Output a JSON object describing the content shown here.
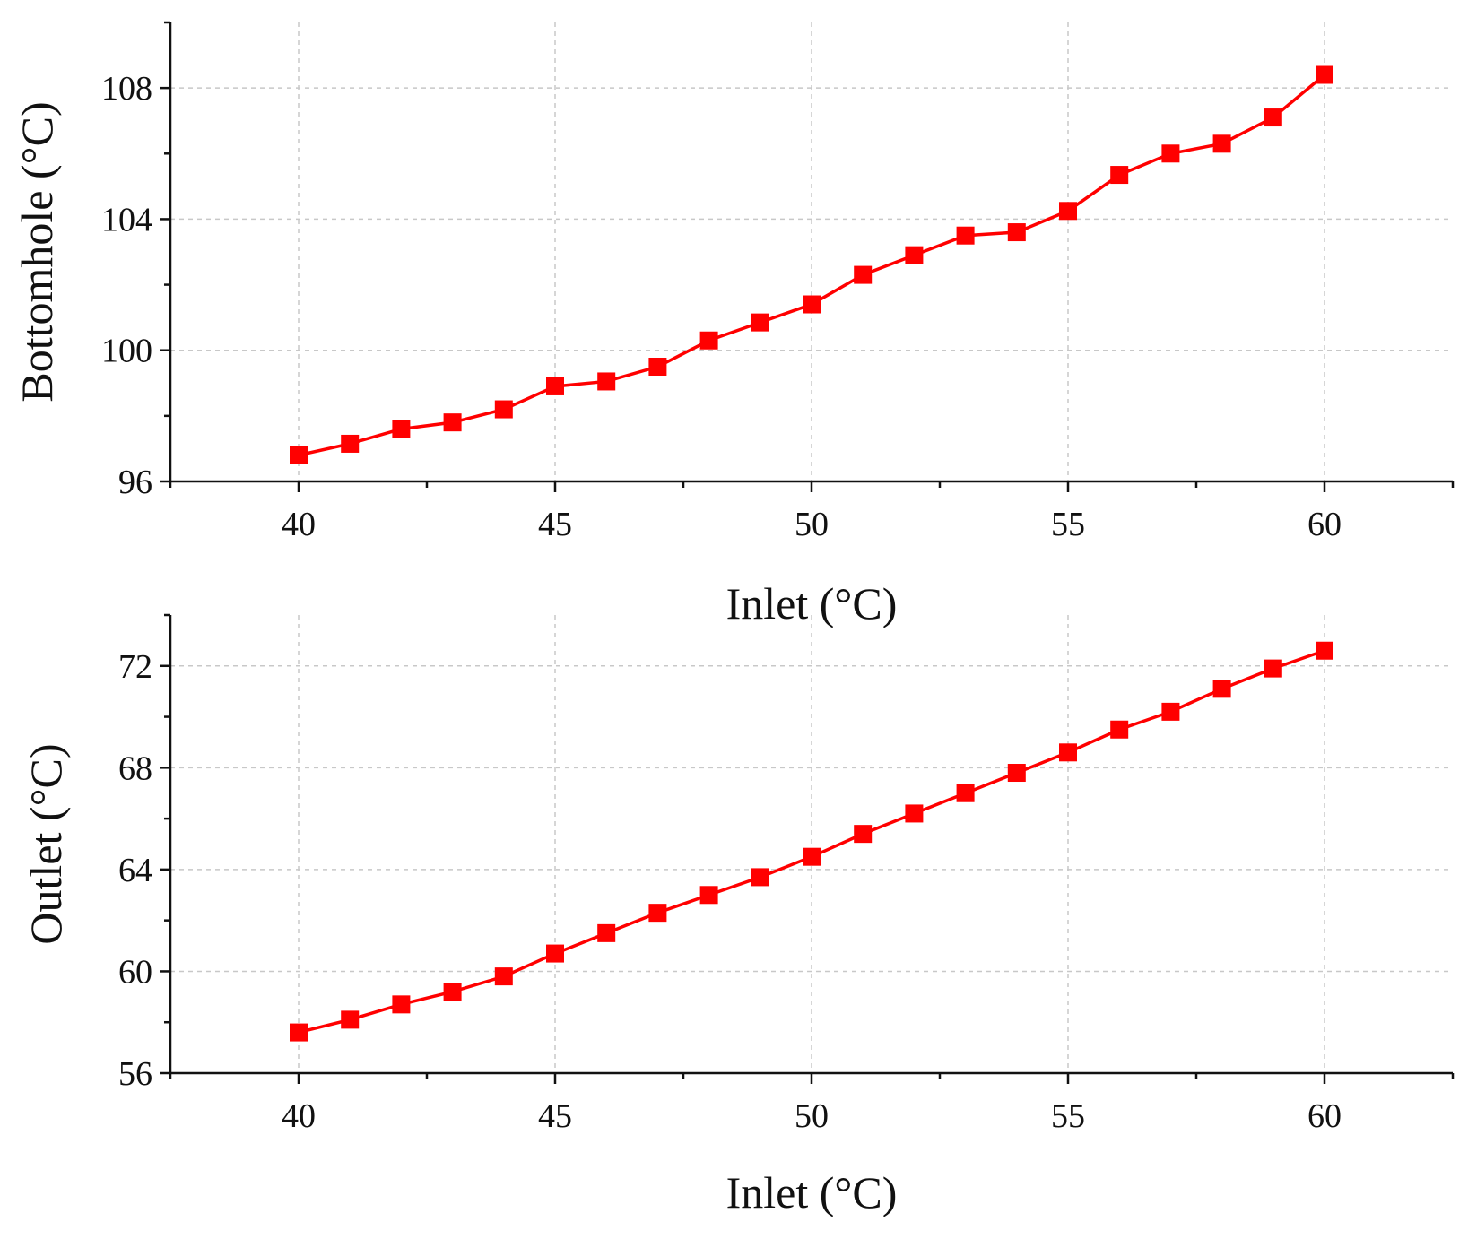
{
  "chart_data": [
    {
      "type": "line",
      "xlabel": "Inlet (°C)",
      "ylabel": "Bottomhole (°C)",
      "xlim": [
        37.5,
        62.5
      ],
      "ylim": [
        96,
        110
      ],
      "xticks": [
        40,
        45,
        50,
        55,
        60
      ],
      "yticks": [
        96,
        100,
        104,
        108
      ],
      "grid": true,
      "marker": "square",
      "color": "#ff0000",
      "series": [
        {
          "name": "Bottomhole",
          "x": [
            40,
            41,
            42,
            43,
            44,
            45,
            46,
            47,
            48,
            49,
            50,
            51,
            52,
            53,
            54,
            55,
            56,
            57,
            58,
            59,
            60
          ],
          "y": [
            96.8,
            97.15,
            97.6,
            97.8,
            98.2,
            98.9,
            99.05,
            99.5,
            100.3,
            100.85,
            101.4,
            102.3,
            102.9,
            103.5,
            103.6,
            104.25,
            105.35,
            106.0,
            106.3,
            107.1,
            108.4
          ]
        }
      ]
    },
    {
      "type": "line",
      "xlabel": "Inlet (°C)",
      "ylabel": "Outlet (°C)",
      "xlim": [
        37.5,
        62.5
      ],
      "ylim": [
        56,
        74
      ],
      "xticks": [
        40,
        45,
        50,
        55,
        60
      ],
      "yticks": [
        56,
        60,
        64,
        68,
        72
      ],
      "grid": true,
      "marker": "square",
      "color": "#ff0000",
      "series": [
        {
          "name": "Outlet",
          "x": [
            40,
            41,
            42,
            43,
            44,
            45,
            46,
            47,
            48,
            49,
            50,
            51,
            52,
            53,
            54,
            55,
            56,
            57,
            58,
            59,
            60
          ],
          "y": [
            57.6,
            58.1,
            58.7,
            59.2,
            59.8,
            60.7,
            61.5,
            62.3,
            63.0,
            63.7,
            64.5,
            65.4,
            66.2,
            67.0,
            67.8,
            68.6,
            69.5,
            70.2,
            71.1,
            71.9,
            72.6
          ]
        }
      ]
    }
  ]
}
